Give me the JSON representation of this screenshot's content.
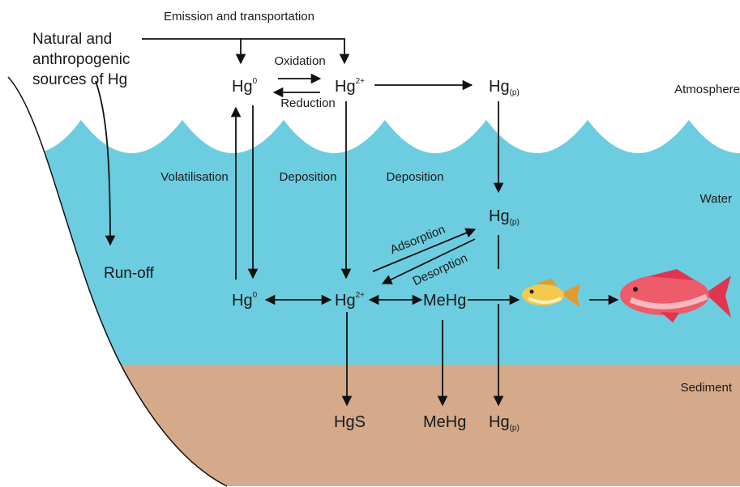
{
  "header": {
    "title": "Emission and transportation"
  },
  "source_lines": [
    "Natural and",
    "anthropogenic",
    "sources of Hg"
  ],
  "zones": {
    "atmosphere": "Atmosphere",
    "water": "Water",
    "sediment": "Sediment"
  },
  "processes": {
    "oxidation": "Oxidation",
    "reduction": "Reduction",
    "volatilisation": "Volatilisation",
    "deposition_1": "Deposition",
    "deposition_2": "Deposition",
    "runoff": "Run-off",
    "adsorption": "Adsorption",
    "desorption": "Desorption"
  },
  "species": {
    "atm_hg0": {
      "base": "Hg",
      "sup": "0"
    },
    "atm_hg2": {
      "base": "Hg",
      "sup": "2+"
    },
    "atm_hgp": {
      "base": "Hg",
      "sub": "(p)"
    },
    "water_hgp": {
      "base": "Hg",
      "sub": "(p)"
    },
    "water_hg0": {
      "base": "Hg",
      "sup": "0"
    },
    "water_hg2": {
      "base": "Hg",
      "sup": "2+"
    },
    "water_mehg": {
      "base": "MeHg"
    },
    "sed_hgs": {
      "base": "HgS"
    },
    "sed_mehg": {
      "base": "MeHg"
    },
    "sed_hgp": {
      "base": "Hg",
      "sub": "(p)"
    }
  }
}
